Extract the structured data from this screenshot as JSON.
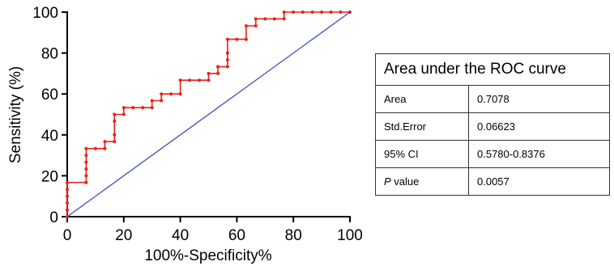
{
  "chart_data": {
    "type": "line",
    "xlabel": "100%-Specificity%",
    "ylabel": "Sensitivity (%)",
    "xlim": [
      0,
      100
    ],
    "ylim": [
      0,
      100
    ],
    "xticks": [
      0,
      20,
      40,
      60,
      80,
      100
    ],
    "yticks": [
      0,
      20,
      40,
      60,
      80,
      100
    ],
    "grid": false,
    "series": [
      {
        "color": "#e8221b",
        "marker": "dot",
        "x": [
          0,
          0,
          0,
          0,
          0,
          0,
          6.7,
          6.7,
          6.7,
          6.7,
          6.7,
          6.7,
          10,
          13.3,
          13.3,
          16.7,
          16.7,
          16.7,
          16.7,
          20,
          20,
          23.3,
          26.7,
          30,
          30,
          33.3,
          33.3,
          36.7,
          40,
          40,
          43.3,
          46.7,
          50,
          50,
          53.3,
          53.3,
          56.7,
          56.7,
          56.7,
          56.7,
          60,
          63.3,
          63.3,
          66.7,
          66.7,
          70,
          73.3,
          76.7,
          76.7,
          80,
          83.3,
          86.7,
          90,
          93.3,
          96.7,
          100
        ],
        "y": [
          0,
          3.3,
          6.7,
          10,
          13.3,
          16.7,
          16.7,
          20,
          23.3,
          26.7,
          30,
          33.3,
          33.3,
          33.3,
          36.7,
          36.7,
          40,
          46.7,
          50,
          50,
          53.3,
          53.3,
          53.3,
          53.3,
          56.7,
          56.7,
          60,
          60,
          60,
          66.7,
          66.7,
          66.7,
          66.7,
          70,
          70,
          73.3,
          73.3,
          76.7,
          80,
          86.7,
          86.7,
          86.7,
          93.3,
          93.3,
          96.7,
          96.7,
          96.7,
          96.7,
          100,
          100,
          100,
          100,
          100,
          100,
          100,
          100
        ]
      },
      {
        "color": "#3b4fc0",
        "marker": "none",
        "x": [
          0,
          100
        ],
        "y": [
          0,
          100
        ]
      }
    ]
  },
  "table": {
    "title": "Area under the ROC curve",
    "rows": [
      {
        "label": "Area",
        "value": "0.7078"
      },
      {
        "label": "Std.Error",
        "value": "0.06623"
      },
      {
        "label": "95% CI",
        "value": "0.5780-0.8376"
      },
      {
        "label_italic": "P",
        "label_rest": " value",
        "value": "0.0057"
      }
    ]
  }
}
